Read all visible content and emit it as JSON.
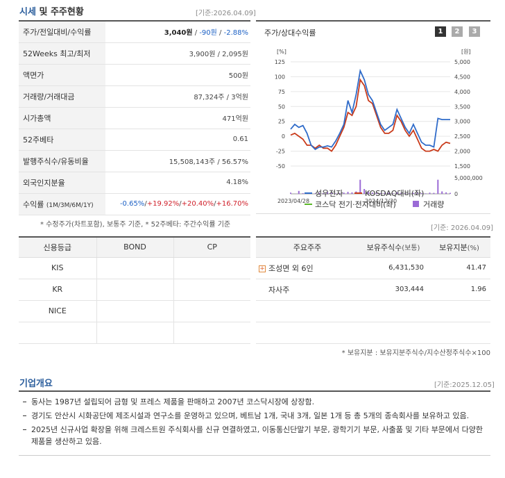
{
  "section1": {
    "title_a": "시세",
    "title_b": "및 주주현황",
    "asof": "[기준:2026.04.09]"
  },
  "info": {
    "price": {
      "label": "주가/전일대비/수익률",
      "v1": "3,040원",
      "sep1": " / ",
      "v2": "-90원",
      "sep2": " / ",
      "v3": "-2.88%"
    },
    "week52": {
      "label": "52Weeks 최고/최저",
      "value": "3,900원 / 2,095원"
    },
    "par": {
      "label": "액면가",
      "value": "500원"
    },
    "volume": {
      "label": "거래량/거래대금",
      "value": "87,324주 / 3억원"
    },
    "mcap": {
      "label": "시가총액",
      "value": "471억원"
    },
    "beta": {
      "label": "52주베타",
      "value": "0.61"
    },
    "shares": {
      "label": "발행주식수/유동비율",
      "value": "15,508,143주 / 56.57%"
    },
    "foreign": {
      "label": "외국인지분율",
      "value": "4.18%"
    },
    "returns": {
      "label": "수익률",
      "label_sub": "(1M/3M/6M/1Y)",
      "r1": "-0.65%",
      "r2": "+19.92%",
      "r3": "+20.40%",
      "r4": "+16.70%",
      "sep": "/"
    }
  },
  "note1": "* 수정주가(차트포함), 보통주 기준, * 52주베타: 주간수익률 기준",
  "chart_box": {
    "title": "주가/상대수익률",
    "pages": [
      "1",
      "2",
      "3"
    ],
    "asof": "[기준: 2026.04.09]"
  },
  "chart_data": {
    "type": "line",
    "ylabel_left": "[%]",
    "ylabel_right": "[원]",
    "y_left_ticks": [
      "125",
      "100",
      "75",
      "50",
      "25",
      "0",
      "-25",
      "-50"
    ],
    "y_right_ticks": [
      "5,000",
      "4,500",
      "4,000",
      "3,500",
      "3,000",
      "2,500",
      "2,000",
      "1,500"
    ],
    "volume_ticks": [
      "5,000,000",
      "0"
    ],
    "x_ticks": [
      "2023/04/28",
      "2024/12/30"
    ],
    "ylim_left": [
      -50,
      125
    ],
    "series": [
      {
        "name": "성우전자",
        "color": "#2f6bc9",
        "values": [
          12,
          20,
          15,
          18,
          5,
          -15,
          -22,
          -18,
          -18,
          -16,
          -18,
          -8,
          5,
          20,
          60,
          40,
          70,
          110,
          95,
          70,
          60,
          40,
          20,
          10,
          15,
          20,
          45,
          30,
          15,
          5,
          20,
          5,
          -10,
          -15,
          -15,
          -18,
          30,
          28,
          28,
          28
        ]
      },
      {
        "name": "KOSDAQ대비(좌)",
        "color": "#c93a1a",
        "values": [
          2,
          5,
          0,
          -5,
          -15,
          -15,
          -20,
          -15,
          -20,
          -20,
          -25,
          -15,
          0,
          15,
          40,
          35,
          50,
          95,
          85,
          60,
          55,
          35,
          15,
          5,
          5,
          10,
          35,
          25,
          10,
          0,
          10,
          -5,
          -20,
          -25,
          -25,
          -22,
          -25,
          -15,
          -10,
          -12
        ]
      },
      {
        "name": "코스닥 전기·전자대비(좌)",
        "color": "#5bb827",
        "values": []
      },
      {
        "name": "거래량",
        "color": "#9b6bd6",
        "values": [
          0.05,
          0.0,
          0.12,
          0.03,
          0.05,
          0.04,
          0.02,
          0.05,
          0.03,
          0.07,
          0.04,
          0.02,
          0.03,
          0.05,
          0.08,
          0.06,
          0.1,
          0.58,
          0.2,
          0.08,
          0.05,
          0.04,
          0.03,
          0.05,
          0.04,
          0.02,
          0.06,
          0.04,
          0.03,
          0.02,
          0.04,
          0.05,
          0.03,
          0.02,
          0.05,
          0.04,
          0.58,
          0.1,
          0.06,
          0.04
        ]
      }
    ]
  },
  "credit": {
    "headers": [
      "신용등급",
      "BOND",
      "CP"
    ],
    "rows": [
      [
        "KIS",
        "",
        ""
      ],
      [
        "KR",
        "",
        ""
      ],
      [
        "NICE",
        "",
        ""
      ],
      [
        "",
        "",
        ""
      ]
    ]
  },
  "holders": {
    "headers": {
      "name": "주요주주",
      "shares": "보유주식수",
      "shares_unit": "(보통)",
      "ratio": "보유지분",
      "ratio_unit": "(%)"
    },
    "rows": [
      {
        "name": "조성면 외 6인",
        "shares": "6,431,530",
        "ratio": "41.47",
        "expandable": true
      },
      {
        "name": "자사주",
        "shares": "303,444",
        "ratio": "1.96",
        "expandable": false
      },
      {
        "name": "",
        "shares": "",
        "ratio": "",
        "expandable": false
      },
      {
        "name": "",
        "shares": "",
        "ratio": "",
        "expandable": false
      }
    ]
  },
  "note2": "* 보유지분 : 보유지분주식수/지수산정주식수×100",
  "overview": {
    "title": "기업개요",
    "asof": "[기준:2025.12.05]",
    "items": [
      "동사는 1987년 설립되어 금형 및 프레스 제품을 판매하고 2007년 코스닥시장에 상장함.",
      "경기도 안산시 시화공단에 제조시설과 연구소를 운영하고 있으며, 베트남 1개, 국내 3개, 일본 1개 등 총 5개의 종속회사를 보유하고 있음.",
      "2025년 신규사업 확장을 위해 크레스트원 주식회사를 신규 연결하였고, 이동통신단말기 부문, 광학기기 부문, 사출품 및 기타 부문에서 다양한 제품을 생산하고 있음."
    ]
  }
}
